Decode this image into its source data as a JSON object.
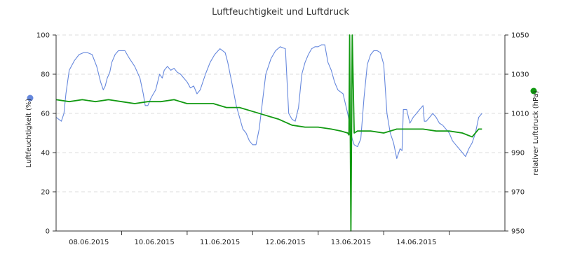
{
  "chart_data": {
    "type": "line",
    "title": "Luftfeuchtigkeit und Luftdruck",
    "x_tick_labels": [
      "08.06.2015",
      "10.06.2015",
      "11.06.2015",
      "12.06.2015",
      "13.06.2015",
      "14.06.2015"
    ],
    "grid": true,
    "y_left": {
      "label": "Luftfeuchtigkeit (%)",
      "range": [
        0,
        100
      ],
      "ticks": [
        0,
        20,
        40,
        60,
        80,
        100
      ],
      "color": "#6688dd"
    },
    "y_right": {
      "label": "relativer Luftdruck (hPa)",
      "range": [
        950,
        1050
      ],
      "ticks": [
        950,
        970,
        990,
        1010,
        1030,
        1050
      ],
      "color": "#119911"
    },
    "x_range": [
      0,
      6.85
    ],
    "x_tick_positions": [
      0.5,
      1.5,
      2.5,
      3.5,
      4.5,
      5.5
    ],
    "series": [
      {
        "axis": "left",
        "color": "#6688dd",
        "x": [
          0,
          0.08,
          0.12,
          0.15,
          0.2,
          0.28,
          0.35,
          0.42,
          0.48,
          0.55,
          0.62,
          0.68,
          0.72,
          0.75,
          0.78,
          0.82,
          0.85,
          0.9,
          0.95,
          1.0,
          1.05,
          1.12,
          1.2,
          1.28,
          1.33,
          1.36,
          1.4,
          1.45,
          1.52,
          1.58,
          1.62,
          1.65,
          1.7,
          1.75,
          1.8,
          1.85,
          1.9,
          1.95,
          2.0,
          2.05,
          2.1,
          2.15,
          2.2,
          2.28,
          2.35,
          2.42,
          2.5,
          2.58,
          2.62,
          2.68,
          2.75,
          2.8,
          2.85,
          2.9,
          2.95,
          3.0,
          3.05,
          3.1,
          3.15,
          3.2,
          3.28,
          3.35,
          3.42,
          3.5,
          3.55,
          3.6,
          3.65,
          3.7,
          3.75,
          3.8,
          3.85,
          3.9,
          3.95,
          4.0,
          4.05,
          4.1,
          4.15,
          4.2,
          4.25,
          4.3,
          4.38,
          4.45,
          4.48,
          4.5,
          4.52,
          4.55,
          4.6,
          4.65,
          4.7,
          4.75,
          4.8,
          4.85,
          4.9,
          4.95,
          5.0,
          5.05,
          5.1,
          5.15,
          5.2,
          5.25,
          5.28,
          5.3,
          5.35,
          5.4,
          5.45,
          5.5,
          5.55,
          5.6,
          5.62,
          5.65,
          5.7,
          5.75,
          5.8,
          5.85,
          5.9,
          5.95,
          6.0,
          6.05,
          6.1,
          6.15,
          6.2,
          6.25,
          6.3,
          6.35,
          6.4,
          6.45,
          6.5
        ],
        "y": [
          58,
          56,
          60,
          70,
          82,
          87,
          90,
          91,
          91,
          90,
          84,
          76,
          72,
          74,
          78,
          81,
          86,
          90,
          92,
          92,
          92,
          88,
          84,
          78,
          70,
          64,
          64,
          68,
          72,
          80,
          78,
          82,
          84,
          82,
          83,
          81,
          80,
          78,
          76,
          73,
          74,
          70,
          72,
          80,
          86,
          90,
          93,
          91,
          86,
          76,
          64,
          58,
          52,
          50,
          46,
          44,
          44,
          52,
          66,
          80,
          88,
          92,
          94,
          93,
          60,
          57,
          56,
          63,
          80,
          86,
          90,
          93,
          94,
          94,
          95,
          95,
          86,
          82,
          76,
          72,
          70,
          60,
          55,
          50,
          47,
          44,
          43,
          47,
          68,
          85,
          90,
          92,
          92,
          91,
          85,
          60,
          50,
          45,
          37,
          42,
          41,
          62,
          62,
          55,
          58,
          60,
          62,
          64,
          56,
          56,
          58,
          60,
          58,
          55,
          54,
          52,
          50,
          46,
          44,
          42,
          40,
          38,
          42,
          45,
          50,
          58,
          60
        ]
      },
      {
        "axis": "right",
        "color": "#119911",
        "x": [
          0,
          0.2,
          0.4,
          0.6,
          0.8,
          1.0,
          1.2,
          1.4,
          1.6,
          1.8,
          2.0,
          2.2,
          2.4,
          2.6,
          2.8,
          3.0,
          3.2,
          3.4,
          3.6,
          3.8,
          4.0,
          4.2,
          4.35,
          4.45,
          4.47,
          4.48,
          4.5,
          4.52,
          4.55,
          4.6,
          4.7,
          4.8,
          5.0,
          5.2,
          5.4,
          5.6,
          5.8,
          6.0,
          6.2,
          6.35,
          6.45,
          6.5
        ],
        "y": [
          1017,
          1016,
          1017,
          1016,
          1017,
          1016,
          1015,
          1016,
          1016,
          1017,
          1015,
          1015,
          1015,
          1013,
          1013,
          1011,
          1009,
          1007,
          1004,
          1003,
          1003,
          1002,
          1001,
          1000,
          999,
          1050,
          950,
          1050,
          1000,
          1001,
          1001,
          1001,
          1000,
          1002,
          1002,
          1002,
          1001,
          1001,
          1000,
          998,
          1002,
          1002
        ]
      }
    ]
  }
}
